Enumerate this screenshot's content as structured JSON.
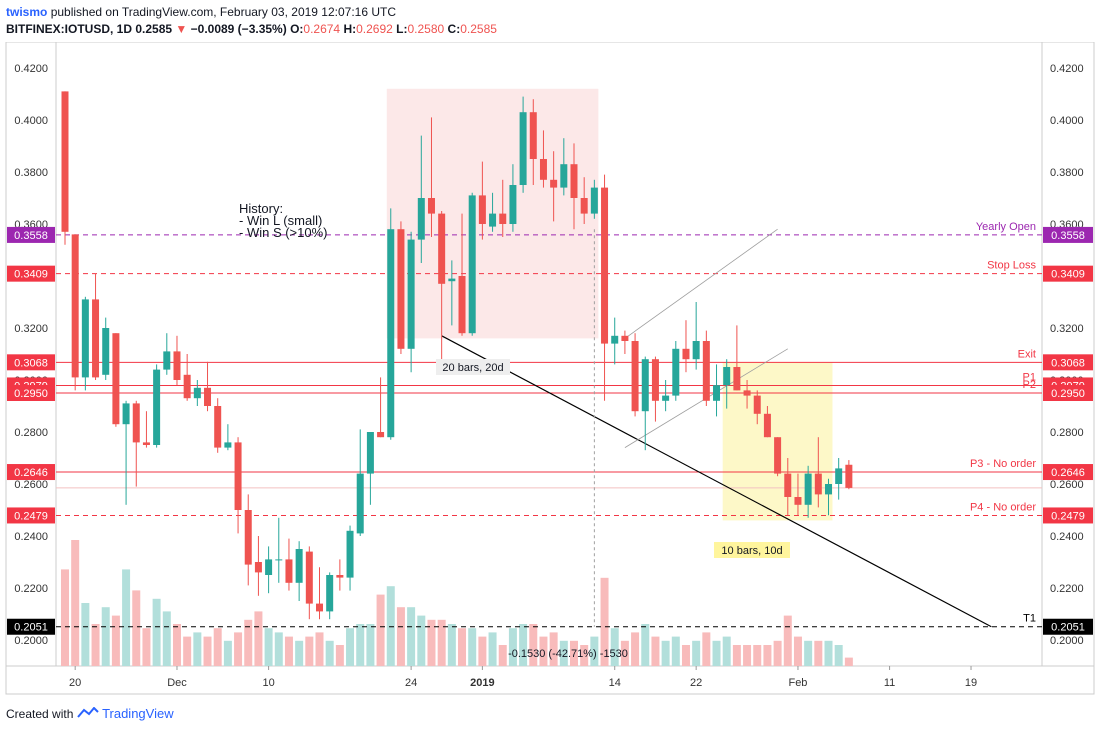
{
  "header": {
    "user": "twismo",
    "published": "published on TradingView.com, February 03, 2019 12:07:16 UTC",
    "symbol": "BITFINEX:IOTUSD, 1D",
    "last": "0.2585",
    "arrow": "▼",
    "change": "−0.0089 (−3.35%)",
    "o_label": "O:",
    "o_value": "0.2674",
    "h_label": "H:",
    "h_value": "0.2692",
    "l_label": "L:",
    "l_value": "0.2580",
    "c_label": "C:",
    "c_value": "0.2585"
  },
  "footer": {
    "created_with": "Created with",
    "brand": "TradingView"
  },
  "colors": {
    "up": "#26a69a",
    "down": "#ef5350",
    "vol_up": "#b2dfdb",
    "vol_down": "#f8bbbb",
    "purple": "#9c27b0",
    "red": "#f23645",
    "black": "#000000"
  },
  "chart_data": {
    "type": "candlestick",
    "y_range": [
      0.19,
      0.43
    ],
    "y_ticks": [
      "0.2000",
      "0.2200",
      "0.2400",
      "0.2600",
      "0.2800",
      "0.3000",
      "0.3200",
      "0.3400",
      "0.3600",
      "0.3800",
      "0.4000",
      "0.4200"
    ],
    "x_ticks": [
      {
        "label": "20",
        "index": 1,
        "bold": false
      },
      {
        "label": "Dec",
        "index": 11,
        "bold": false
      },
      {
        "label": "10",
        "index": 20,
        "bold": false
      },
      {
        "label": "24",
        "index": 34,
        "bold": false
      },
      {
        "label": "2019",
        "index": 41,
        "bold": true
      },
      {
        "label": "14",
        "index": 54,
        "bold": false
      },
      {
        "label": "22",
        "index": 62,
        "bold": false
      },
      {
        "label": "Feb",
        "index": 72,
        "bold": false
      },
      {
        "label": "11",
        "index": 81,
        "bold": false
      },
      {
        "label": "19",
        "index": 89,
        "bold": false
      }
    ],
    "candles": [
      {
        "o": 0.411,
        "h": 0.411,
        "l": 0.352,
        "c": 0.357,
        "v": 0.23
      },
      {
        "o": 0.356,
        "h": 0.356,
        "l": 0.296,
        "c": 0.301,
        "v": 0.3
      },
      {
        "o": 0.301,
        "h": 0.332,
        "l": 0.296,
        "c": 0.331,
        "v": 0.15
      },
      {
        "o": 0.331,
        "h": 0.341,
        "l": 0.3,
        "c": 0.301,
        "v": 0.1
      },
      {
        "o": 0.302,
        "h": 0.324,
        "l": 0.3,
        "c": 0.32,
        "v": 0.14
      },
      {
        "o": 0.318,
        "h": 0.318,
        "l": 0.282,
        "c": 0.283,
        "v": 0.12
      },
      {
        "o": 0.283,
        "h": 0.292,
        "l": 0.252,
        "c": 0.291,
        "v": 0.23
      },
      {
        "o": 0.291,
        "h": 0.292,
        "l": 0.259,
        "c": 0.276,
        "v": 0.18
      },
      {
        "o": 0.276,
        "h": 0.288,
        "l": 0.274,
        "c": 0.275,
        "v": 0.09
      },
      {
        "o": 0.275,
        "h": 0.306,
        "l": 0.274,
        "c": 0.304,
        "v": 0.16
      },
      {
        "o": 0.304,
        "h": 0.318,
        "l": 0.302,
        "c": 0.311,
        "v": 0.13
      },
      {
        "o": 0.311,
        "h": 0.317,
        "l": 0.298,
        "c": 0.3,
        "v": 0.1
      },
      {
        "o": 0.302,
        "h": 0.31,
        "l": 0.292,
        "c": 0.293,
        "v": 0.07
      },
      {
        "o": 0.293,
        "h": 0.3,
        "l": 0.29,
        "c": 0.297,
        "v": 0.08
      },
      {
        "o": 0.297,
        "h": 0.307,
        "l": 0.288,
        "c": 0.29,
        "v": 0.07
      },
      {
        "o": 0.29,
        "h": 0.293,
        "l": 0.272,
        "c": 0.274,
        "v": 0.09
      },
      {
        "o": 0.274,
        "h": 0.283,
        "l": 0.273,
        "c": 0.276,
        "v": 0.06
      },
      {
        "o": 0.276,
        "h": 0.278,
        "l": 0.241,
        "c": 0.25,
        "v": 0.08
      },
      {
        "o": 0.25,
        "h": 0.256,
        "l": 0.221,
        "c": 0.229,
        "v": 0.11
      },
      {
        "o": 0.23,
        "h": 0.24,
        "l": 0.217,
        "c": 0.226,
        "v": 0.13
      },
      {
        "o": 0.225,
        "h": 0.236,
        "l": 0.218,
        "c": 0.231,
        "v": 0.09
      },
      {
        "o": 0.231,
        "h": 0.247,
        "l": 0.222,
        "c": 0.231,
        "v": 0.08
      },
      {
        "o": 0.231,
        "h": 0.239,
        "l": 0.219,
        "c": 0.222,
        "v": 0.07
      },
      {
        "o": 0.222,
        "h": 0.238,
        "l": 0.215,
        "c": 0.235,
        "v": 0.06
      },
      {
        "o": 0.234,
        "h": 0.236,
        "l": 0.208,
        "c": 0.214,
        "v": 0.07
      },
      {
        "o": 0.214,
        "h": 0.228,
        "l": 0.208,
        "c": 0.211,
        "v": 0.08
      },
      {
        "o": 0.211,
        "h": 0.226,
        "l": 0.208,
        "c": 0.225,
        "v": 0.06
      },
      {
        "o": 0.225,
        "h": 0.231,
        "l": 0.219,
        "c": 0.224,
        "v": 0.05
      },
      {
        "o": 0.224,
        "h": 0.244,
        "l": 0.219,
        "c": 0.242,
        "v": 0.09
      },
      {
        "o": 0.241,
        "h": 0.281,
        "l": 0.24,
        "c": 0.264,
        "v": 0.1
      },
      {
        "o": 0.264,
        "h": 0.28,
        "l": 0.252,
        "c": 0.28,
        "v": 0.1
      },
      {
        "o": 0.28,
        "h": 0.301,
        "l": 0.278,
        "c": 0.278,
        "v": 0.17
      },
      {
        "o": 0.278,
        "h": 0.366,
        "l": 0.277,
        "c": 0.358,
        "v": 0.19
      },
      {
        "o": 0.358,
        "h": 0.361,
        "l": 0.31,
        "c": 0.312,
        "v": 0.14
      },
      {
        "o": 0.312,
        "h": 0.357,
        "l": 0.303,
        "c": 0.354,
        "v": 0.14
      },
      {
        "o": 0.354,
        "h": 0.394,
        "l": 0.345,
        "c": 0.37,
        "v": 0.12
      },
      {
        "o": 0.37,
        "h": 0.401,
        "l": 0.355,
        "c": 0.364,
        "v": 0.11
      },
      {
        "o": 0.364,
        "h": 0.365,
        "l": 0.306,
        "c": 0.337,
        "v": 0.11
      },
      {
        "o": 0.338,
        "h": 0.346,
        "l": 0.321,
        "c": 0.339,
        "v": 0.1
      },
      {
        "o": 0.34,
        "h": 0.364,
        "l": 0.317,
        "c": 0.318,
        "v": 0.09
      },
      {
        "o": 0.318,
        "h": 0.372,
        "l": 0.317,
        "c": 0.371,
        "v": 0.09
      },
      {
        "o": 0.371,
        "h": 0.384,
        "l": 0.354,
        "c": 0.36,
        "v": 0.07
      },
      {
        "o": 0.359,
        "h": 0.372,
        "l": 0.357,
        "c": 0.364,
        "v": 0.08
      },
      {
        "o": 0.364,
        "h": 0.377,
        "l": 0.355,
        "c": 0.36,
        "v": 0.05
      },
      {
        "o": 0.36,
        "h": 0.383,
        "l": 0.357,
        "c": 0.375,
        "v": 0.09
      },
      {
        "o": 0.375,
        "h": 0.409,
        "l": 0.372,
        "c": 0.403,
        "v": 0.1
      },
      {
        "o": 0.403,
        "h": 0.408,
        "l": 0.375,
        "c": 0.385,
        "v": 0.1
      },
      {
        "o": 0.385,
        "h": 0.396,
        "l": 0.374,
        "c": 0.377,
        "v": 0.07
      },
      {
        "o": 0.377,
        "h": 0.388,
        "l": 0.361,
        "c": 0.374,
        "v": 0.08
      },
      {
        "o": 0.374,
        "h": 0.393,
        "l": 0.371,
        "c": 0.383,
        "v": 0.06
      },
      {
        "o": 0.383,
        "h": 0.391,
        "l": 0.358,
        "c": 0.37,
        "v": 0.06
      },
      {
        "o": 0.37,
        "h": 0.378,
        "l": 0.36,
        "c": 0.364,
        "v": 0.05
      },
      {
        "o": 0.364,
        "h": 0.377,
        "l": 0.362,
        "c": 0.374,
        "v": 0.07
      },
      {
        "o": 0.374,
        "h": 0.379,
        "l": 0.292,
        "c": 0.314,
        "v": 0.21
      },
      {
        "o": 0.314,
        "h": 0.324,
        "l": 0.306,
        "c": 0.317,
        "v": 0.09
      },
      {
        "o": 0.317,
        "h": 0.319,
        "l": 0.31,
        "c": 0.315,
        "v": 0.06
      },
      {
        "o": 0.315,
        "h": 0.318,
        "l": 0.286,
        "c": 0.288,
        "v": 0.08
      },
      {
        "o": 0.288,
        "h": 0.309,
        "l": 0.273,
        "c": 0.308,
        "v": 0.1
      },
      {
        "o": 0.308,
        "h": 0.309,
        "l": 0.284,
        "c": 0.292,
        "v": 0.07
      },
      {
        "o": 0.292,
        "h": 0.3,
        "l": 0.288,
        "c": 0.294,
        "v": 0.06
      },
      {
        "o": 0.294,
        "h": 0.315,
        "l": 0.292,
        "c": 0.312,
        "v": 0.07
      },
      {
        "o": 0.312,
        "h": 0.323,
        "l": 0.303,
        "c": 0.308,
        "v": 0.05
      },
      {
        "o": 0.308,
        "h": 0.33,
        "l": 0.304,
        "c": 0.315,
        "v": 0.06
      },
      {
        "o": 0.315,
        "h": 0.319,
        "l": 0.29,
        "c": 0.292,
        "v": 0.08
      },
      {
        "o": 0.292,
        "h": 0.306,
        "l": 0.286,
        "c": 0.298,
        "v": 0.06
      },
      {
        "o": 0.298,
        "h": 0.308,
        "l": 0.289,
        "c": 0.305,
        "v": 0.07
      },
      {
        "o": 0.305,
        "h": 0.321,
        "l": 0.296,
        "c": 0.296,
        "v": 0.05
      },
      {
        "o": 0.296,
        "h": 0.3,
        "l": 0.289,
        "c": 0.294,
        "v": 0.05
      },
      {
        "o": 0.294,
        "h": 0.296,
        "l": 0.283,
        "c": 0.287,
        "v": 0.05
      },
      {
        "o": 0.287,
        "h": 0.29,
        "l": 0.278,
        "c": 0.278,
        "v": 0.05
      },
      {
        "o": 0.278,
        "h": 0.278,
        "l": 0.263,
        "c": 0.264,
        "v": 0.06
      },
      {
        "o": 0.264,
        "h": 0.27,
        "l": 0.248,
        "c": 0.255,
        "v": 0.12
      },
      {
        "o": 0.255,
        "h": 0.264,
        "l": 0.248,
        "c": 0.252,
        "v": 0.07
      },
      {
        "o": 0.252,
        "h": 0.267,
        "l": 0.247,
        "c": 0.264,
        "v": 0.06
      },
      {
        "o": 0.264,
        "h": 0.278,
        "l": 0.251,
        "c": 0.256,
        "v": 0.06
      },
      {
        "o": 0.256,
        "h": 0.262,
        "l": 0.248,
        "c": 0.26,
        "v": 0.06
      },
      {
        "o": 0.26,
        "h": 0.27,
        "l": 0.254,
        "c": 0.266,
        "v": 0.05
      },
      {
        "o": 0.2674,
        "h": 0.2692,
        "l": 0.258,
        "c": 0.2585,
        "v": 0.02
      }
    ],
    "horizontal_levels": [
      {
        "price": 0.3558,
        "badge": "0.3558",
        "label": "Yearly Open",
        "color": "#9c27b0",
        "dashed": true
      },
      {
        "price": 0.3409,
        "badge": "0.3409",
        "label": "Stop Loss",
        "color": "#f23645",
        "dashed": true
      },
      {
        "price": 0.3068,
        "badge": "0.3068",
        "label": "Exit",
        "color": "#f23645",
        "dashed": false
      },
      {
        "price": 0.2979,
        "badge": "0.2979",
        "label": "P1",
        "color": "#f23645",
        "dashed": false
      },
      {
        "price": 0.295,
        "badge": "0.2950",
        "label": "P2",
        "color": "#f23645",
        "dashed": false
      },
      {
        "price": 0.2646,
        "badge": "0.2646",
        "label": "P3 - No order",
        "color": "#f23645",
        "dashed": false
      },
      {
        "price": 0.2479,
        "badge": "0.2479",
        "label": "P4 - No order",
        "color": "#f23645",
        "dashed": true
      },
      {
        "price": 0.2051,
        "badge": "0.2051",
        "label": "T1",
        "color": "#000000",
        "dashed": true
      }
    ],
    "annotations": {
      "history_title": "History:",
      "history_lines": [
        "- Win L (small)",
        "- Win S (>10%)"
      ],
      "range_label_1": "20 bars, 20d",
      "range_label_2": "10 bars, 10d",
      "measure_label": "-0.1530 (-42.71%) -1530"
    },
    "trendline": {
      "start_index": 37,
      "start_price": 0.317,
      "end_index": 91,
      "end_price": 0.2051
    },
    "channel": [
      {
        "start_index": 55,
        "start_price": 0.316,
        "end_index": 70,
        "end_price": 0.358
      },
      {
        "start_index": 55,
        "start_price": 0.274,
        "end_index": 71,
        "end_price": 0.312
      }
    ],
    "date_ranges": [
      {
        "start_index": 32,
        "end_index": 52,
        "top": 0.412,
        "bottom": 0.316,
        "fill": "#fce8e8"
      },
      {
        "start_index": 65,
        "end_index": 75,
        "top": 0.3068,
        "bottom": 0.246,
        "fill": "#fdf8c8"
      }
    ],
    "vertical_marker": {
      "index": 52,
      "top": 0.358,
      "bottom": 0.2051
    }
  }
}
